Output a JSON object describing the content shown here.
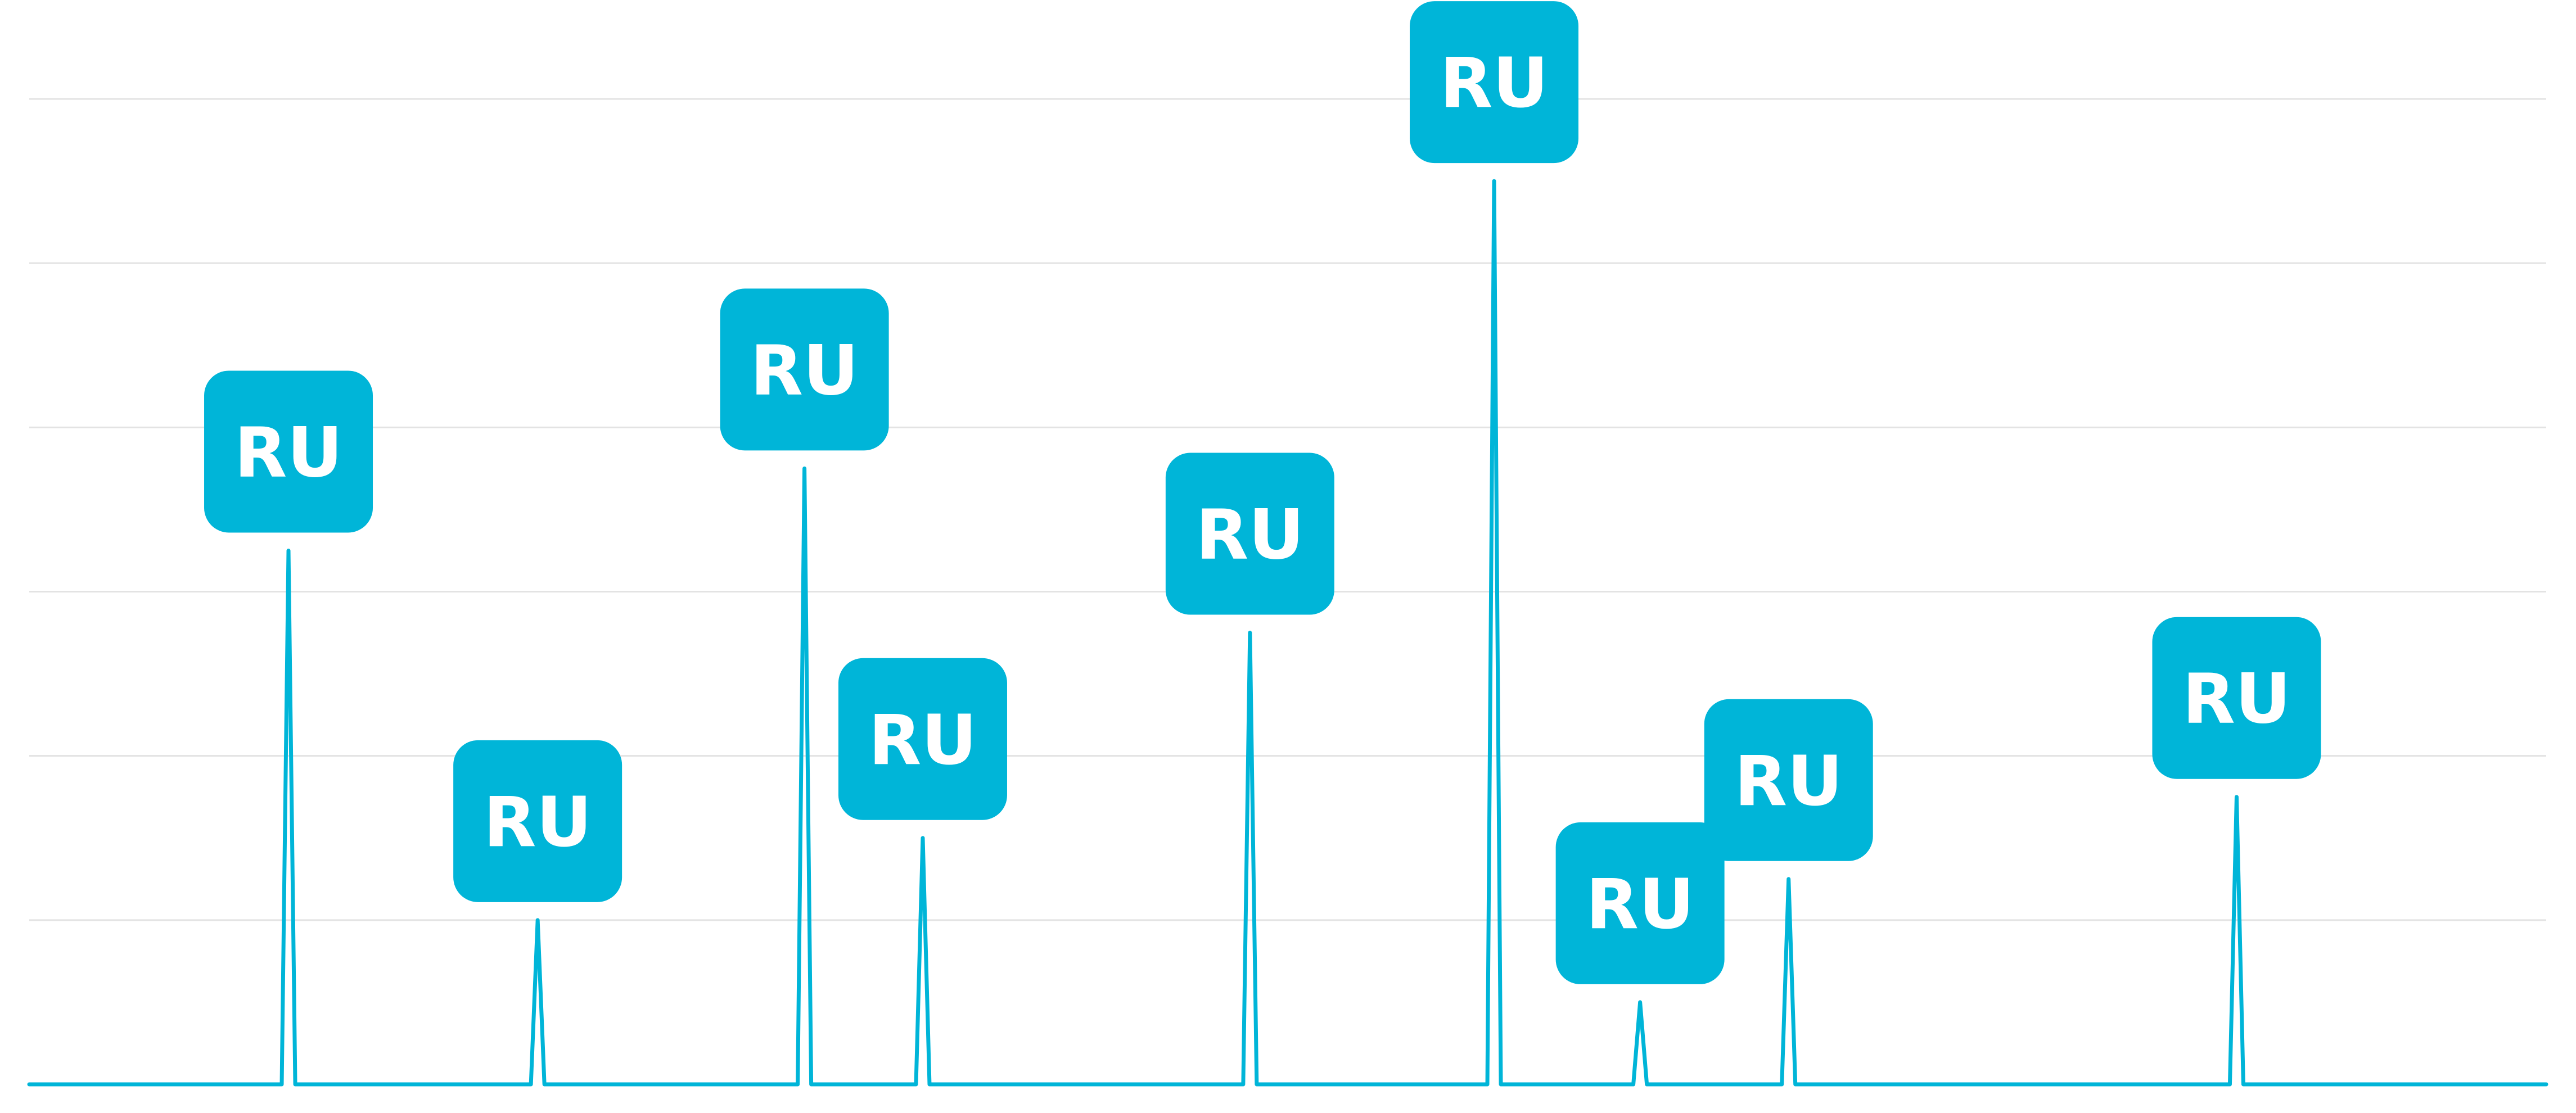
{
  "chart_data": {
    "type": "line",
    "title": "",
    "xlabel": "",
    "ylabel": "",
    "grid": true,
    "ylim": [
      0,
      6
    ],
    "xlim": [
      0,
      1
    ],
    "baseline": 0,
    "series": [
      {
        "color": "#00b5d8",
        "spikes": [
          {
            "x": 0.103,
            "value": 3.25,
            "label": "RU"
          },
          {
            "x": 0.202,
            "value": 1.0,
            "label": "RU"
          },
          {
            "x": 0.308,
            "value": 3.75,
            "label": "RU"
          },
          {
            "x": 0.355,
            "value": 1.5,
            "label": "RU"
          },
          {
            "x": 0.485,
            "value": 2.75,
            "label": "RU"
          },
          {
            "x": 0.582,
            "value": 5.5,
            "label": "RU"
          },
          {
            "x": 0.64,
            "value": 0.5,
            "label": "RU"
          },
          {
            "x": 0.699,
            "value": 1.25,
            "label": "RU"
          },
          {
            "x": 0.877,
            "value": 1.75,
            "label": "RU"
          }
        ]
      }
    ]
  },
  "colors": {
    "accent": "#00b5d8",
    "grid": "#e3e3e3",
    "label_text": "#ffffff"
  }
}
